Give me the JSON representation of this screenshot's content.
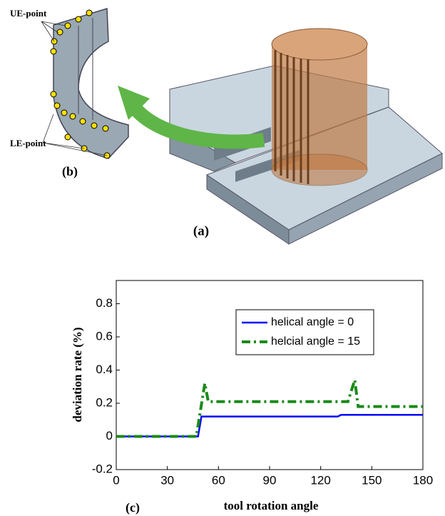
{
  "figure": {
    "label_a": "(a)",
    "label_b": "(b)",
    "ue_point": "UE-point",
    "le_point": "LE-point"
  },
  "chart_data": {
    "type": "line",
    "label": "(c)",
    "xlabel": "tool rotation angle",
    "ylabel": "deviation rate (%)",
    "xlim": [
      0,
      180
    ],
    "xticks": [
      0,
      30,
      60,
      90,
      120,
      150,
      180
    ],
    "ylim": [
      -0.2,
      0.94
    ],
    "yticks": [
      -0.2,
      0,
      0.2,
      0.4,
      0.6,
      0.8
    ],
    "legend": "upper right",
    "series": [
      {
        "name": "helical angle = 0",
        "color": "#0000ff",
        "dash": "solid",
        "x": [
          0,
          48,
          50,
          130,
          132,
          180
        ],
        "values": [
          0,
          0,
          0.12,
          0.12,
          0.13,
          0.13
        ]
      },
      {
        "name": "helcial angle = 15",
        "color": "#1a8a1a",
        "dash": "dashdot",
        "x": [
          0,
          47,
          52,
          54,
          136,
          140,
          142,
          180
        ],
        "values": [
          0,
          0,
          0.32,
          0.21,
          0.21,
          0.34,
          0.18,
          0.18
        ]
      }
    ]
  }
}
